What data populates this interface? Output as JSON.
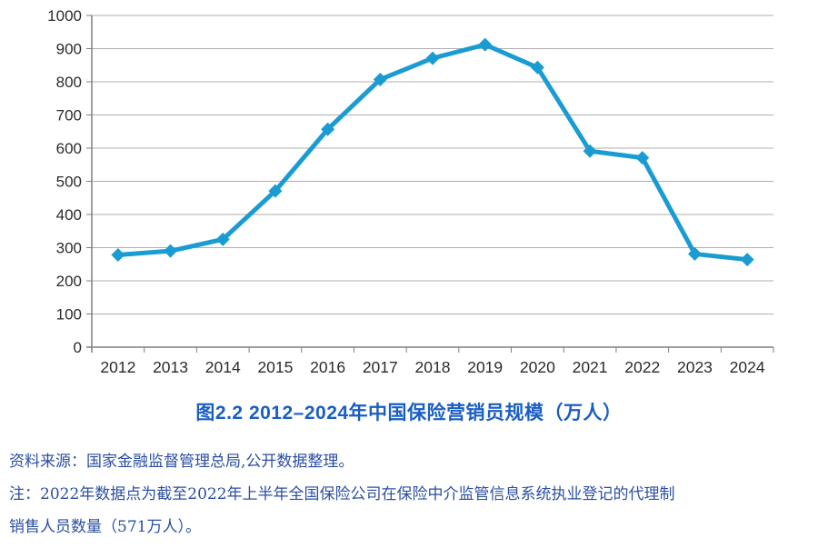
{
  "chart_data": {
    "type": "line",
    "title": "图2.2 2012–2024年中国保险营销员规模（万人）",
    "categories": [
      "2012",
      "2013",
      "2014",
      "2015",
      "2016",
      "2017",
      "2018",
      "2019",
      "2020",
      "2021",
      "2022",
      "2023",
      "2024"
    ],
    "values": [
      278,
      290,
      325,
      471,
      657,
      807,
      871,
      912,
      843,
      591,
      571,
      281,
      264
    ],
    "xlabel": "",
    "ylabel": "",
    "ylim": [
      0,
      1000
    ],
    "ytick_step": 100,
    "grid": true,
    "legend": "none",
    "marker": "diamond",
    "line_color": "#1A9CD3",
    "grid_color": "#AFAFAF",
    "axis_color": "#7F7F7F",
    "tick_label_color": "#2B2B2B"
  },
  "title": {
    "color": "#1A5EC4"
  },
  "footnotes": {
    "color": "#2B4FA3",
    "source": "资料来源：国家金融监督管理总局,公开数据整理。",
    "note_line1": "注：2022年数据点为截至2022年上半年全国保险公司在保险中介监管信息系统执业登记的代理制",
    "note_line2": "销售人员数量（571万人）。"
  }
}
